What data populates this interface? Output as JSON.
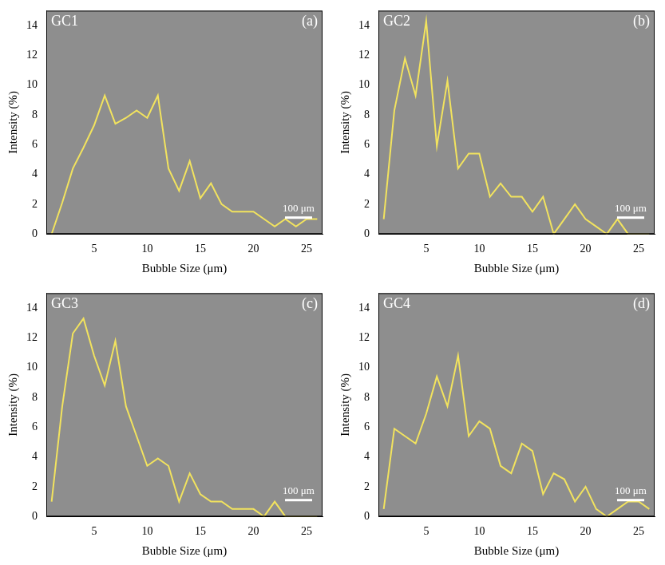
{
  "chart_data": [
    {
      "type": "line",
      "title": "GC1",
      "annotations": [
        "(a)",
        "100 μm"
      ],
      "x_label": "Bubble Size (μm)",
      "y_label": "Intensity (%)",
      "x": [
        1,
        2,
        3,
        4,
        5,
        6,
        7,
        8,
        9,
        10,
        11,
        12,
        13,
        14,
        15,
        16,
        17,
        18,
        19,
        20,
        21,
        22,
        23,
        24,
        25,
        26
      ],
      "values": [
        0,
        2.1,
        4.4,
        5.8,
        7.3,
        9.3,
        7.4,
        7.8,
        8.3,
        7.8,
        9.3,
        4.4,
        2.9,
        4.9,
        2.4,
        3.4,
        2.0,
        1.5,
        1.5,
        1.5,
        1.0,
        0.5,
        1.0,
        0.5,
        1.0,
        1.0
      ],
      "color": "#f2e35e",
      "xlim": [
        0.5,
        26.5
      ],
      "xticks": [
        5,
        10,
        15,
        20,
        25
      ],
      "ylim": [
        0,
        15
      ],
      "yticks": [
        0,
        2,
        4,
        6,
        8,
        10,
        12,
        14
      ],
      "grid": false
    },
    {
      "type": "line",
      "title": "GC2",
      "annotations": [
        "(b)",
        "100 μm"
      ],
      "x_label": "Bubble Size (μm)",
      "y_label": "Intensity (%)",
      "x": [
        1,
        2,
        3,
        4,
        5,
        6,
        7,
        8,
        9,
        10,
        11,
        12,
        13,
        14,
        15,
        16,
        17,
        18,
        19,
        20,
        21,
        22,
        23,
        24,
        25,
        26
      ],
      "values": [
        1.0,
        8.3,
        11.8,
        9.3,
        14.3,
        5.9,
        10.3,
        4.4,
        5.4,
        5.4,
        2.5,
        3.4,
        2.5,
        2.5,
        1.5,
        2.5,
        0,
        1.0,
        2.0,
        1.0,
        0.5,
        0,
        1.0,
        0,
        0,
        0
      ],
      "color": "#f2e35e",
      "xlim": [
        0.5,
        26.5
      ],
      "xticks": [
        5,
        10,
        15,
        20,
        25
      ],
      "ylim": [
        0,
        15
      ],
      "yticks": [
        0,
        2,
        4,
        6,
        8,
        10,
        12,
        14
      ],
      "grid": false
    },
    {
      "type": "line",
      "title": "GC3",
      "annotations": [
        "(c)",
        "100 μm"
      ],
      "x_label": "Bubble Size (μm)",
      "y_label": "Intensity (%)",
      "x": [
        1,
        2,
        3,
        4,
        5,
        6,
        7,
        8,
        9,
        10,
        11,
        12,
        13,
        14,
        15,
        16,
        17,
        18,
        19,
        20,
        21,
        22,
        23,
        24,
        25,
        26
      ],
      "values": [
        1.0,
        7.4,
        12.3,
        13.3,
        10.8,
        8.8,
        11.8,
        7.4,
        5.4,
        3.4,
        3.9,
        3.4,
        1.0,
        2.9,
        1.5,
        1.0,
        1.0,
        0.5,
        0.5,
        0.5,
        0,
        1.0,
        0,
        0,
        0,
        0
      ],
      "color": "#f2e35e",
      "xlim": [
        0.5,
        26.5
      ],
      "xticks": [
        5,
        10,
        15,
        20,
        25
      ],
      "ylim": [
        0,
        15
      ],
      "yticks": [
        0,
        2,
        4,
        6,
        8,
        10,
        12,
        14
      ],
      "grid": false
    },
    {
      "type": "line",
      "title": "GC4",
      "annotations": [
        "(d)",
        "100 μm"
      ],
      "x_label": "Bubble Size (μm)",
      "y_label": "Intensity (%)",
      "x": [
        1,
        2,
        3,
        4,
        5,
        6,
        7,
        8,
        9,
        10,
        11,
        12,
        13,
        14,
        15,
        16,
        17,
        18,
        19,
        20,
        21,
        22,
        23,
        24,
        25,
        26
      ],
      "values": [
        0.5,
        5.9,
        5.4,
        4.9,
        6.9,
        9.4,
        7.4,
        10.8,
        5.4,
        6.4,
        5.9,
        3.4,
        2.9,
        4.9,
        4.4,
        1.5,
        2.9,
        2.5,
        1.0,
        2.0,
        0.5,
        0,
        0.5,
        1.0,
        1.0,
        0.5
      ],
      "color": "#f2e35e",
      "xlim": [
        0.5,
        26.5
      ],
      "xticks": [
        5,
        10,
        15,
        20,
        25
      ],
      "ylim": [
        0,
        15
      ],
      "yticks": [
        0,
        2,
        4,
        6,
        8,
        10,
        12,
        14
      ],
      "grid": false
    }
  ]
}
